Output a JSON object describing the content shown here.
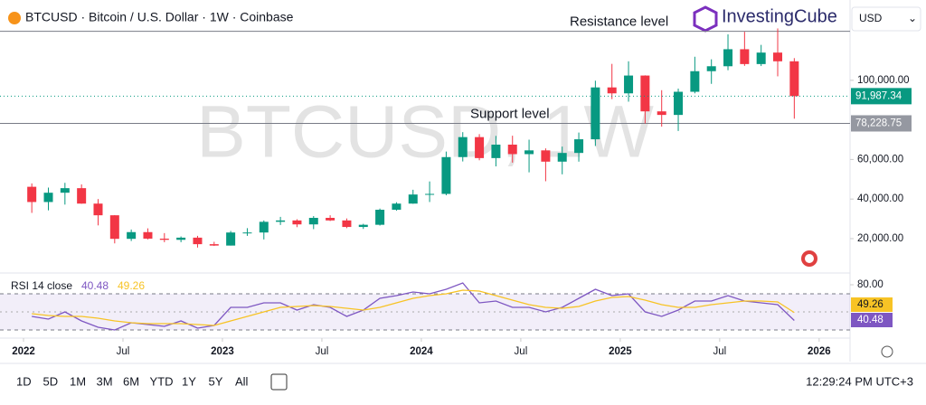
{
  "header": {
    "title": "BTCUSD · Bitcoin / U.S. Dollar · 1W · Coinbase",
    "logo": "InvestingCube",
    "currency": "USD"
  },
  "toolbar": {
    "ranges": [
      "1D",
      "5D",
      "1M",
      "3M",
      "6M",
      "YTD",
      "1Y",
      "5Y",
      "All"
    ],
    "clock": "12:29:24 PM UTC+3"
  },
  "chart_data": [
    {
      "type": "candlestick",
      "watermark": "BTCUSD, 1W",
      "x": [
        "2022-01",
        "2022-02",
        "2022-03",
        "2022-04",
        "2022-05",
        "2022-06",
        "2022-07",
        "2022-08",
        "2022-09",
        "2022-10",
        "2022-11",
        "2022-12",
        "2023-01",
        "2023-02",
        "2023-03",
        "2023-04",
        "2023-05",
        "2023-06",
        "2023-07",
        "2023-08",
        "2023-09",
        "2023-10",
        "2023-11",
        "2023-12",
        "2024-01",
        "2024-02",
        "2024-03",
        "2024-04",
        "2024-05",
        "2024-06",
        "2024-07",
        "2024-08",
        "2024-09",
        "2024-10",
        "2024-11",
        "2024-12",
        "2025-01",
        "2025-02",
        "2025-03",
        "2025-04",
        "2025-05",
        "2025-06",
        "2025-07",
        "2025-08",
        "2025-09",
        "2025-10",
        "2025-11"
      ],
      "open": [
        46200,
        38500,
        43200,
        45500,
        37700,
        31800,
        19900,
        23300,
        20000,
        19400,
        20500,
        17200,
        16500,
        23100,
        23100,
        28500,
        29200,
        27200,
        30500,
        29200,
        25900,
        27000,
        34600,
        37700,
        42300,
        42600,
        61200,
        71300,
        60700,
        67500,
        62700,
        64600,
        58900,
        63300,
        70200,
        96400,
        93400,
        102400,
        84300,
        82500,
        94200,
        104600,
        107100,
        115700,
        108200,
        114000,
        109600
      ],
      "high": [
        47900,
        45800,
        48200,
        47400,
        40000,
        31900,
        24600,
        25200,
        22800,
        21100,
        21400,
        18400,
        23900,
        25300,
        29200,
        31000,
        29800,
        31400,
        31800,
        30200,
        27500,
        35200,
        38400,
        44700,
        48900,
        64000,
        73800,
        72800,
        71900,
        72000,
        70000,
        65600,
        66500,
        73600,
        99800,
        108300,
        109600,
        102500,
        95000,
        95800,
        111900,
        110600,
        123200,
        124500,
        117900,
        126200,
        111200
      ],
      "low": [
        33000,
        34300,
        37200,
        37600,
        26700,
        17600,
        18800,
        19600,
        18200,
        18200,
        15500,
        16300,
        16500,
        21400,
        19600,
        26900,
        25800,
        24800,
        28900,
        25300,
        24900,
        26600,
        34100,
        37600,
        38500,
        41900,
        59000,
        59600,
        56500,
        58400,
        53500,
        49000,
        52500,
        58900,
        66800,
        90500,
        89200,
        78200,
        76600,
        74400,
        93400,
        98200,
        105100,
        107300,
        107200,
        102000,
        80600
      ],
      "close": [
        38500,
        43200,
        45500,
        37700,
        31800,
        19900,
        23300,
        20000,
        19400,
        20500,
        17200,
        16500,
        23100,
        23100,
        28500,
        29200,
        27200,
        30500,
        29200,
        25900,
        27000,
        34600,
        37700,
        42300,
        42600,
        61200,
        71300,
        60700,
        67500,
        62700,
        64600,
        58900,
        63300,
        70200,
        96400,
        93400,
        102400,
        84300,
        82500,
        94200,
        104600,
        107100,
        115700,
        108200,
        114000,
        109600,
        91987.34
      ],
      "last_label": "91,987.34",
      "up_color": "#089981",
      "down_color": "#f23645",
      "ylim": [
        4460,
        136000
      ],
      "yticks": [
        {
          "value": 20000,
          "label": "20,000.00"
        },
        {
          "value": 40000,
          "label": "40,000.00"
        },
        {
          "value": 60000,
          "label": "60,000.00"
        },
        {
          "value": 100000,
          "label": "100,000.00"
        }
      ],
      "xticks": [
        {
          "value": "2022-01",
          "label": "2022"
        },
        {
          "value": "2022-07",
          "label": "Jul"
        },
        {
          "value": "2023-01",
          "label": "2023"
        },
        {
          "value": "2023-07",
          "label": "Jul"
        },
        {
          "value": "2024-01",
          "label": "2024"
        },
        {
          "value": "2024-07",
          "label": "Jul"
        },
        {
          "value": "2025-01",
          "label": "2025"
        },
        {
          "value": "2025-07",
          "label": "Jul"
        },
        {
          "value": "2026-01",
          "label": "2026"
        }
      ],
      "levels": [
        {
          "text": "Resistance level",
          "value": 124776
        },
        {
          "text": "Support level",
          "value": 78228.75,
          "label": "78,228.75"
        }
      ]
    },
    {
      "type": "line",
      "title": "RSI 14 close",
      "series": [
        {
          "color": "#7e57c2",
          "values": [
            45,
            42,
            50,
            40,
            33,
            30,
            38,
            36,
            34,
            40,
            32,
            35,
            55,
            55,
            60,
            60,
            52,
            58,
            55,
            45,
            52,
            65,
            68,
            72,
            70,
            75,
            82,
            60,
            62,
            55,
            55,
            50,
            55,
            65,
            75,
            68,
            70,
            50,
            45,
            52,
            62,
            62,
            68,
            62,
            60,
            58,
            40.48
          ]
        },
        {
          "color": "#f7c325",
          "values": [
            48,
            46,
            45,
            45,
            43,
            40,
            38,
            37,
            37,
            37,
            36,
            35,
            40,
            45,
            50,
            55,
            56,
            57,
            56,
            54,
            52,
            55,
            60,
            65,
            68,
            70,
            74,
            73,
            68,
            63,
            58,
            55,
            54,
            56,
            62,
            66,
            67,
            63,
            58,
            55,
            55,
            58,
            60,
            62,
            62,
            61,
            49.26
          ]
        }
      ],
      "ylim": [
        23,
        92
      ],
      "yticks": [
        {
          "value": 80,
          "label": "80.00"
        }
      ],
      "bands": [
        30,
        70
      ],
      "midline": 50
    }
  ]
}
